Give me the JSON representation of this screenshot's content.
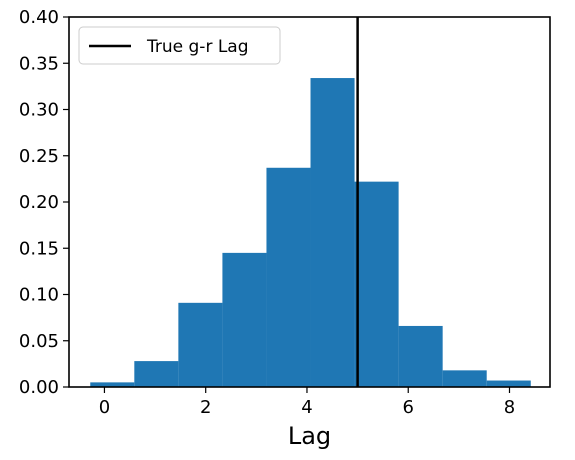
{
  "chart_data": {
    "type": "bar",
    "xlabel": "Lag",
    "ylabel": "",
    "xlim": [
      -0.7,
      8.8
    ],
    "ylim": [
      0,
      0.4
    ],
    "xticks": [
      0,
      2,
      4,
      6,
      8
    ],
    "yticks": [
      0.0,
      0.05,
      0.1,
      0.15,
      0.2,
      0.25,
      0.3,
      0.35,
      0.4
    ],
    "bin_edges": [
      -0.28,
      0.59,
      1.46,
      2.33,
      3.2,
      4.07,
      4.94,
      5.81,
      6.68,
      7.55,
      8.42
    ],
    "values": [
      0.005,
      0.028,
      0.091,
      0.145,
      0.237,
      0.334,
      0.222,
      0.066,
      0.018,
      0.007
    ],
    "bar_color": "#1f77b4",
    "grid": false,
    "reference_line": {
      "x": 5.0,
      "label": "True g-r Lag",
      "color": "#000000"
    },
    "legend": {
      "placement": "top-left",
      "entries": [
        "True g-r Lag"
      ]
    }
  }
}
